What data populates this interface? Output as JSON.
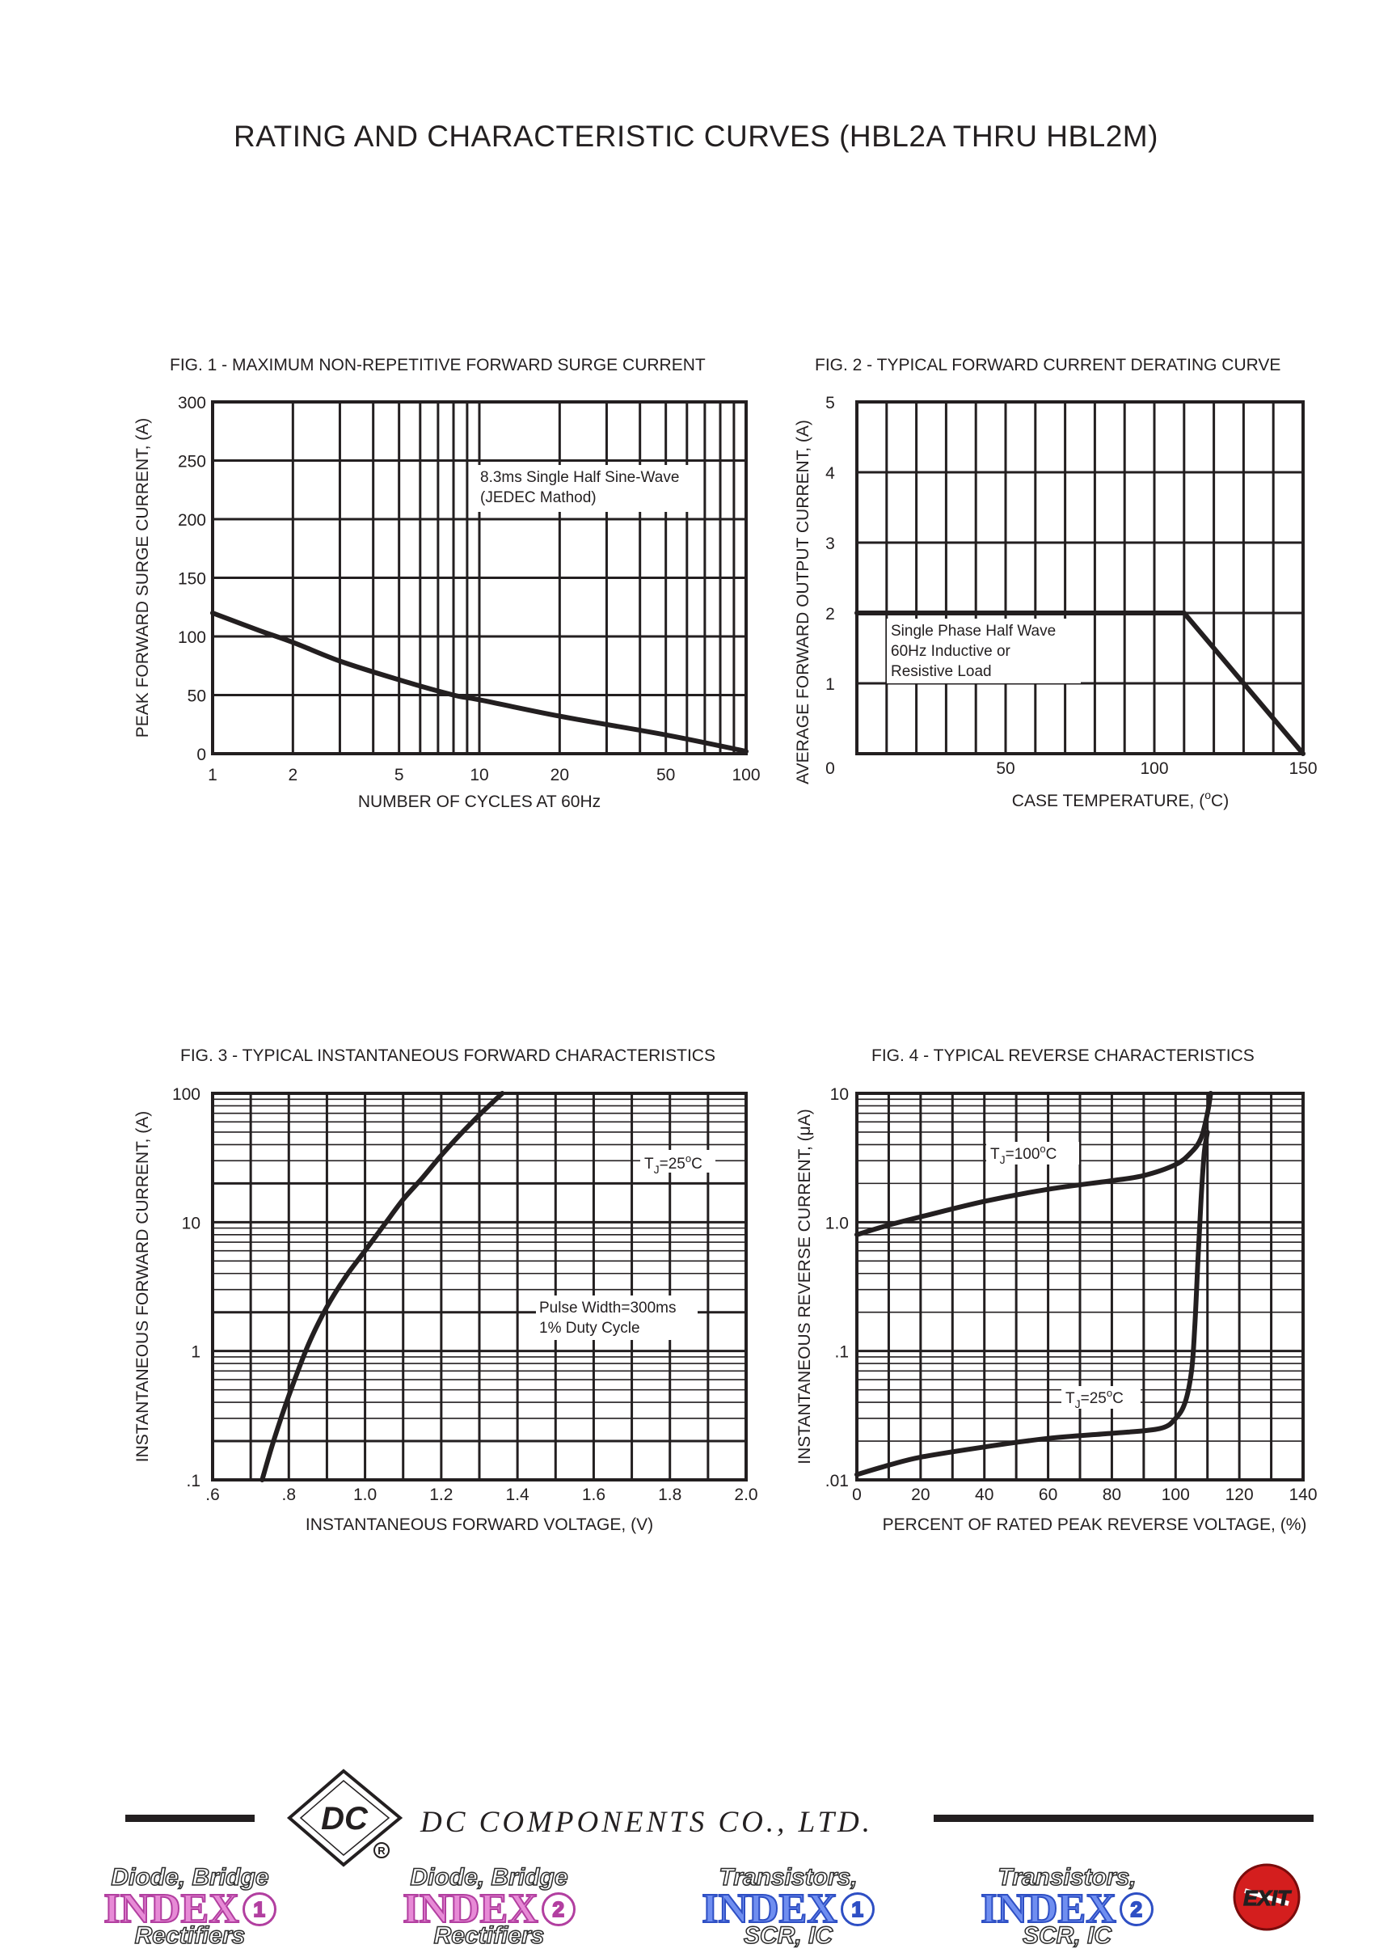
{
  "page": {
    "title": "RATING AND CHARACTERISTIC CURVES (HBL2A THRU HBL2M)"
  },
  "chart_data": [
    {
      "id": "fig1",
      "type": "line",
      "title": "FIG. 1 - MAXIMUM NON-REPETITIVE FORWARD SURGE CURRENT",
      "xlabel": "NUMBER OF CYCLES AT 60Hz",
      "ylabel": "PEAK FORWARD SURGE CURRENT, (A)",
      "xscale": "log",
      "xlim": [
        1,
        100
      ],
      "ylim": [
        0,
        300
      ],
      "xticks": [
        1,
        2,
        5,
        10,
        20,
        50,
        100
      ],
      "xtick_labels": [
        "1",
        "2",
        "5",
        "10",
        "20",
        "50",
        "100"
      ],
      "yticks": [
        0,
        50,
        100,
        150,
        200,
        250,
        300
      ],
      "ytick_labels": [
        "0",
        "50",
        "100",
        "150",
        "200",
        "250",
        "300"
      ],
      "grid": true,
      "annotations": [
        "8.3ms Single Half Sine-Wave",
        "(JEDEC Mathod)"
      ],
      "series": [
        {
          "x": [
            1,
            1.5,
            2,
            3,
            5,
            8,
            10,
            20,
            50,
            100
          ],
          "y": [
            120,
            105,
            95,
            79,
            63,
            50,
            46,
            32,
            16,
            2
          ]
        }
      ]
    },
    {
      "id": "fig2",
      "type": "line",
      "title": "FIG. 2 - TYPICAL FORWARD CURRENT DERATING CURVE",
      "xlabel": "CASE TEMPERATURE, (",
      "xlabel_sup": "o",
      "xlabel_end": "C)",
      "ylabel": "AVERAGE FORWARD OUTPUT CURRENT, (A)",
      "xlim": [
        0,
        150
      ],
      "ylim": [
        0,
        5
      ],
      "xticks": [
        0,
        50,
        100,
        150
      ],
      "xtick_labels": [
        "0",
        "50",
        "100",
        "150"
      ],
      "yticks": [
        1,
        2,
        3,
        4,
        5
      ],
      "ytick_labels": [
        "1",
        "2",
        "3",
        "4",
        "5"
      ],
      "y0_label": "0",
      "grid": true,
      "annotations": [
        "Single Phase Half Wave",
        "60Hz Inductive or",
        "Resistive Load"
      ],
      "series": [
        {
          "x": [
            0,
            110,
            150
          ],
          "y": [
            2,
            2,
            0
          ]
        }
      ]
    },
    {
      "id": "fig3",
      "type": "line",
      "title": "FIG. 3 - TYPICAL INSTANTANEOUS FORWARD CHARACTERISTICS",
      "xlabel": "INSTANTANEOUS FORWARD VOLTAGE, (V)",
      "ylabel": "INSTANTANEOUS FORWARD CURRENT, (A)",
      "yscale": "log",
      "xlim": [
        0.6,
        2.0
      ],
      "ylim": [
        0.1,
        100
      ],
      "xticks": [
        0.6,
        0.8,
        1.0,
        1.2,
        1.4,
        1.6,
        1.8,
        2.0
      ],
      "xtick_labels": [
        ".6",
        ".8",
        "1.0",
        "1.2",
        "1.4",
        "1.6",
        "1.8",
        "2.0"
      ],
      "yticks": [
        0.1,
        1,
        10,
        100
      ],
      "ytick_labels": [
        ".1",
        "1",
        "10",
        "100"
      ],
      "grid": true,
      "annotations": [
        "T",
        "J",
        "=25",
        "o",
        "C",
        "Pulse Width=300ms",
        "1% Duty Cycle"
      ],
      "series": [
        {
          "x": [
            0.73,
            0.76,
            0.8,
            0.85,
            0.9,
            0.95,
            1.0,
            1.05,
            1.1,
            1.15,
            1.2,
            1.25,
            1.3,
            1.36
          ],
          "y": [
            0.1,
            0.2,
            0.45,
            1.1,
            2.2,
            3.8,
            6.0,
            9.5,
            15,
            22,
            33,
            48,
            68,
            100
          ]
        }
      ]
    },
    {
      "id": "fig4",
      "type": "line",
      "title": "FIG. 4 - TYPICAL REVERSE CHARACTERISTICS",
      "xlabel": "PERCENT OF RATED PEAK REVERSE VOLTAGE, (%)",
      "ylabel_start": "INSTANTANEOUS REVERSE CURRENT, (",
      "ylabel_mu": "μ",
      "ylabel_end": "A)",
      "yscale": "log",
      "xlim": [
        0,
        140
      ],
      "ylim": [
        0.01,
        10
      ],
      "xticks": [
        0,
        20,
        40,
        60,
        80,
        100,
        120,
        140
      ],
      "xtick_labels": [
        "0",
        "20",
        "40",
        "60",
        "80",
        "100",
        "120",
        "140"
      ],
      "yticks": [
        0.01,
        0.1,
        1,
        10
      ],
      "ytick_labels": [
        ".01",
        ".1",
        "1.0",
        "10"
      ],
      "grid": true,
      "series": [
        {
          "name": "TJ=100°C",
          "label": [
            "T",
            "J",
            "=100",
            "o",
            "C"
          ],
          "x": [
            0,
            10,
            20,
            40,
            60,
            80,
            90,
            100,
            105,
            108,
            110,
            111
          ],
          "y": [
            0.8,
            0.95,
            1.1,
            1.45,
            1.8,
            2.1,
            2.3,
            2.8,
            3.5,
            4.5,
            7,
            10
          ]
        },
        {
          "name": "TJ=25°C",
          "label": [
            "T",
            "J",
            "=25",
            "o",
            "C"
          ],
          "x": [
            0,
            10,
            20,
            40,
            60,
            80,
            95,
            100,
            103,
            105,
            106,
            107,
            108,
            109,
            110
          ],
          "y": [
            0.011,
            0.013,
            0.015,
            0.018,
            0.021,
            0.023,
            0.025,
            0.03,
            0.04,
            0.07,
            0.15,
            0.5,
            1.5,
            3.5,
            5
          ]
        }
      ]
    }
  ],
  "footer": {
    "company": "DC COMPONENTS CO., LTD.",
    "logo_text": "DC",
    "registered": "R",
    "nav": [
      {
        "top": "Diode, Bridge",
        "mid": "INDEX",
        "num": "1",
        "bottom": "Rectifiers",
        "color": "#e78ad6"
      },
      {
        "top": "Diode, Bridge",
        "mid": "INDEX",
        "num": "2",
        "bottom": "Rectifiers",
        "color": "#e78ad6"
      },
      {
        "top": "Transistors,",
        "mid": "INDEX",
        "num": "1",
        "bottom": "SCR, IC",
        "color": "#6f8ef0"
      },
      {
        "top": "Transistors,",
        "mid": "INDEX",
        "num": "2",
        "bottom": "SCR, IC",
        "color": "#6f8ef0"
      }
    ],
    "exit_label": "EXIT",
    "exit_color": "#d41e1e"
  }
}
